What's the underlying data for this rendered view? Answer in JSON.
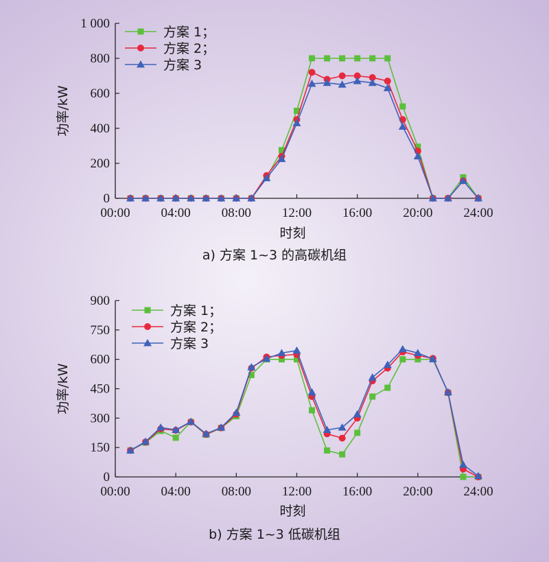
{
  "colors": {
    "scheme1": "#5cbf3c",
    "scheme2": "#e8283c",
    "scheme3": "#3f62b8"
  },
  "chart_data": [
    {
      "type": "line",
      "caption": "a) 方案 1~3 的高碳机组",
      "xlabel": "时刻",
      "ylabel": "功率/kW",
      "xlim": [
        0,
        24
      ],
      "ylim": [
        0,
        1000
      ],
      "x_ticks": [
        "00:00",
        "04:00",
        "08:00",
        "12:00",
        "16:00",
        "20:00",
        "24:00"
      ],
      "y_ticks": [
        "0",
        "200",
        "400",
        "600",
        "800",
        "1 000"
      ],
      "grid": false,
      "legend_position": "top-left",
      "x": [
        1,
        2,
        3,
        4,
        5,
        6,
        7,
        8,
        9,
        10,
        11,
        12,
        13,
        14,
        15,
        16,
        17,
        18,
        19,
        20,
        21,
        22,
        23,
        24
      ],
      "series": [
        {
          "name": "方案 1；",
          "marker": "square",
          "values": [
            0,
            0,
            0,
            0,
            0,
            0,
            0,
            0,
            0,
            120,
            275,
            500,
            800,
            800,
            800,
            800,
            800,
            800,
            525,
            295,
            0,
            0,
            120,
            0
          ]
        },
        {
          "name": "方案 2；",
          "marker": "circle",
          "values": [
            0,
            0,
            0,
            0,
            0,
            0,
            0,
            0,
            0,
            130,
            240,
            450,
            720,
            680,
            700,
            700,
            690,
            670,
            450,
            270,
            0,
            0,
            100,
            0
          ]
        },
        {
          "name": "方案 3",
          "marker": "triangle",
          "values": [
            0,
            0,
            0,
            0,
            0,
            0,
            0,
            0,
            0,
            115,
            225,
            430,
            655,
            660,
            650,
            670,
            660,
            630,
            410,
            240,
            0,
            0,
            100,
            0
          ]
        }
      ]
    },
    {
      "type": "line",
      "caption": "b) 方案 1~3 低碳机组",
      "xlabel": "时刻",
      "ylabel": "功率/kW",
      "xlim": [
        0,
        24
      ],
      "ylim": [
        0,
        900
      ],
      "x_ticks": [
        "00:00",
        "04:00",
        "08:00",
        "12:00",
        "16:00",
        "20:00",
        "24:00"
      ],
      "y_ticks": [
        "0",
        "150",
        "300",
        "450",
        "600",
        "750",
        "900"
      ],
      "grid": false,
      "legend_position": "top-left",
      "x": [
        1,
        2,
        3,
        4,
        5,
        6,
        7,
        8,
        9,
        10,
        11,
        12,
        13,
        14,
        15,
        16,
        17,
        18,
        19,
        20,
        21,
        22,
        23,
        24
      ],
      "series": [
        {
          "name": "方案 1；",
          "marker": "square",
          "values": [
            135,
            175,
            235,
            200,
            280,
            215,
            250,
            310,
            520,
            600,
            600,
            600,
            340,
            135,
            115,
            225,
            410,
            455,
            600,
            600,
            600,
            430,
            0,
            0
          ]
        },
        {
          "name": "方案 2；",
          "marker": "circle",
          "values": [
            135,
            178,
            245,
            238,
            280,
            218,
            250,
            320,
            555,
            612,
            620,
            625,
            410,
            220,
            198,
            300,
            490,
            555,
            638,
            620,
            605,
            430,
            40,
            0
          ]
        },
        {
          "name": "方案 3",
          "marker": "triangle",
          "values": [
            135,
            180,
            252,
            240,
            282,
            220,
            252,
            328,
            560,
            603,
            632,
            645,
            432,
            240,
            252,
            320,
            508,
            572,
            652,
            632,
            602,
            432,
            62,
            5
          ]
        }
      ]
    }
  ]
}
